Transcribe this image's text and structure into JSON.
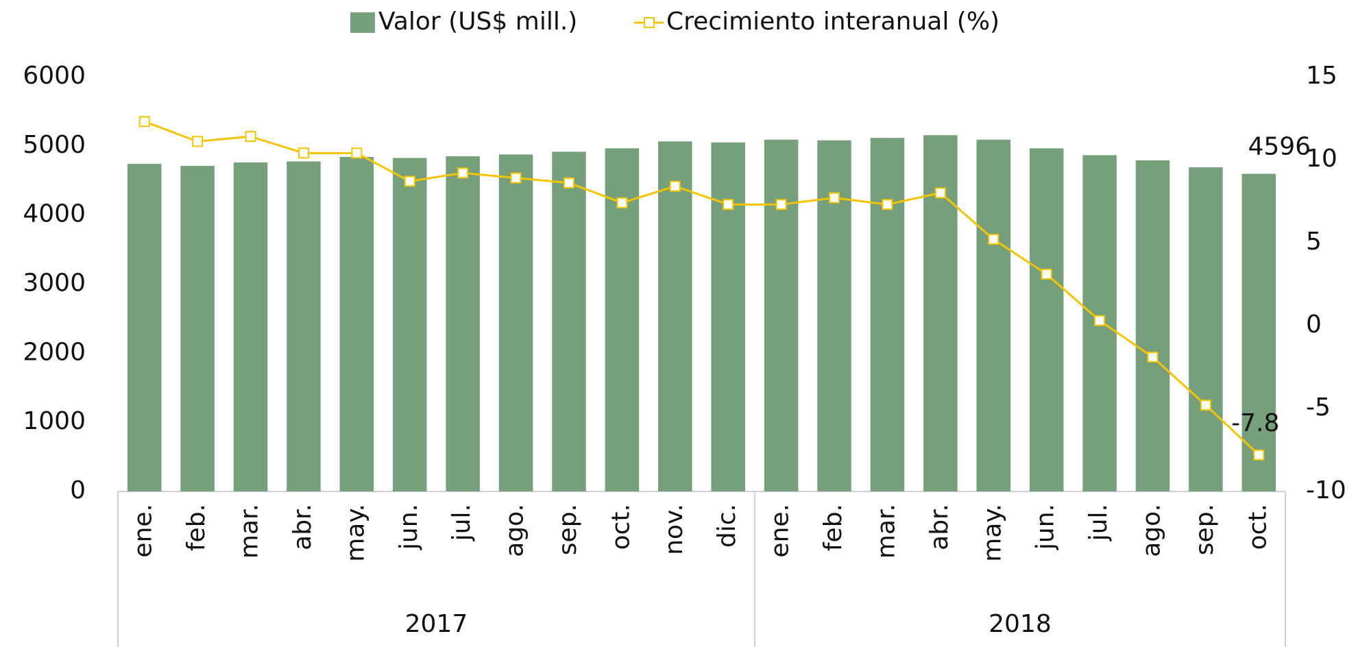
{
  "chart_data": {
    "type": "bar_line",
    "categories": [
      "ene.",
      "feb.",
      "mar.",
      "abr.",
      "may.",
      "jun.",
      "jul.",
      "ago.",
      "sep.",
      "oct.",
      "nov.",
      "dic.",
      "ene.",
      "feb.",
      "mar.",
      "abr.",
      "may.",
      "jun.",
      "jul.",
      "ago.",
      "sep.",
      "oct."
    ],
    "groups": [
      {
        "label": "2017",
        "size": 12
      },
      {
        "label": "2018",
        "size": 10
      }
    ],
    "series": [
      {
        "name": "Valor (US$ mill.)",
        "type": "bar",
        "color": "#76a07c",
        "values": [
          4740,
          4710,
          4760,
          4775,
          4840,
          4825,
          4850,
          4875,
          4915,
          4965,
          5065,
          5050,
          5090,
          5080,
          5115,
          5155,
          5090,
          4965,
          4865,
          4790,
          4690,
          4596
        ]
      },
      {
        "name": "Crecimiento interanual (%)",
        "type": "line",
        "axis": "y2",
        "color": "#f5c400",
        "values": [
          12.3,
          11.1,
          11.4,
          10.4,
          10.4,
          8.7,
          9.2,
          8.9,
          8.6,
          7.4,
          8.4,
          7.3,
          7.3,
          7.7,
          7.3,
          8.0,
          5.2,
          3.1,
          0.3,
          -1.9,
          -4.8,
          -7.8
        ]
      }
    ],
    "ylim": [
      0,
      6000
    ],
    "yticks": [
      0,
      1000,
      2000,
      3000,
      4000,
      5000,
      6000
    ],
    "y2lim": [
      -10,
      15
    ],
    "y2ticks": [
      -10,
      -5,
      0,
      5,
      10,
      15
    ],
    "legend": "top"
  }
}
